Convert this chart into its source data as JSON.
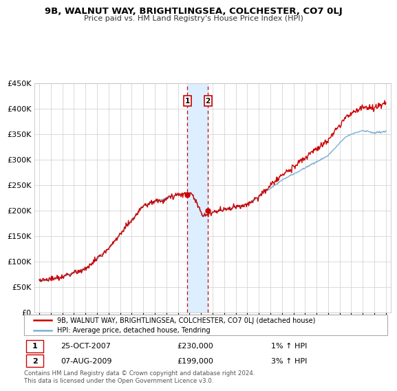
{
  "title": "9B, WALNUT WAY, BRIGHTLINGSEA, COLCHESTER, CO7 0LJ",
  "subtitle": "Price paid vs. HM Land Registry's House Price Index (HPI)",
  "ylim": [
    0,
    450000
  ],
  "yticks": [
    0,
    50000,
    100000,
    150000,
    200000,
    250000,
    300000,
    350000,
    400000,
    450000
  ],
  "sale1_date": "25-OCT-2007",
  "sale1_price": 230000,
  "sale1_hpi": "1% ↑ HPI",
  "sale2_date": "07-AUG-2009",
  "sale2_price": 199000,
  "sale2_hpi": "3% ↑ HPI",
  "legend_line1": "9B, WALNUT WAY, BRIGHTLINGSEA, COLCHESTER, CO7 0LJ (detached house)",
  "legend_line2": "HPI: Average price, detached house, Tendring",
  "footer": "Contains HM Land Registry data © Crown copyright and database right 2024.\nThis data is licensed under the Open Government Licence v3.0.",
  "line_color_red": "#cc0000",
  "line_color_blue": "#7bafd4",
  "shade_color": "#ddeeff",
  "marker_color": "#cc0000",
  "sale1_year": 2007.82,
  "sale2_year": 2009.6,
  "xlim_left": 1994.6,
  "xlim_right": 2025.4
}
